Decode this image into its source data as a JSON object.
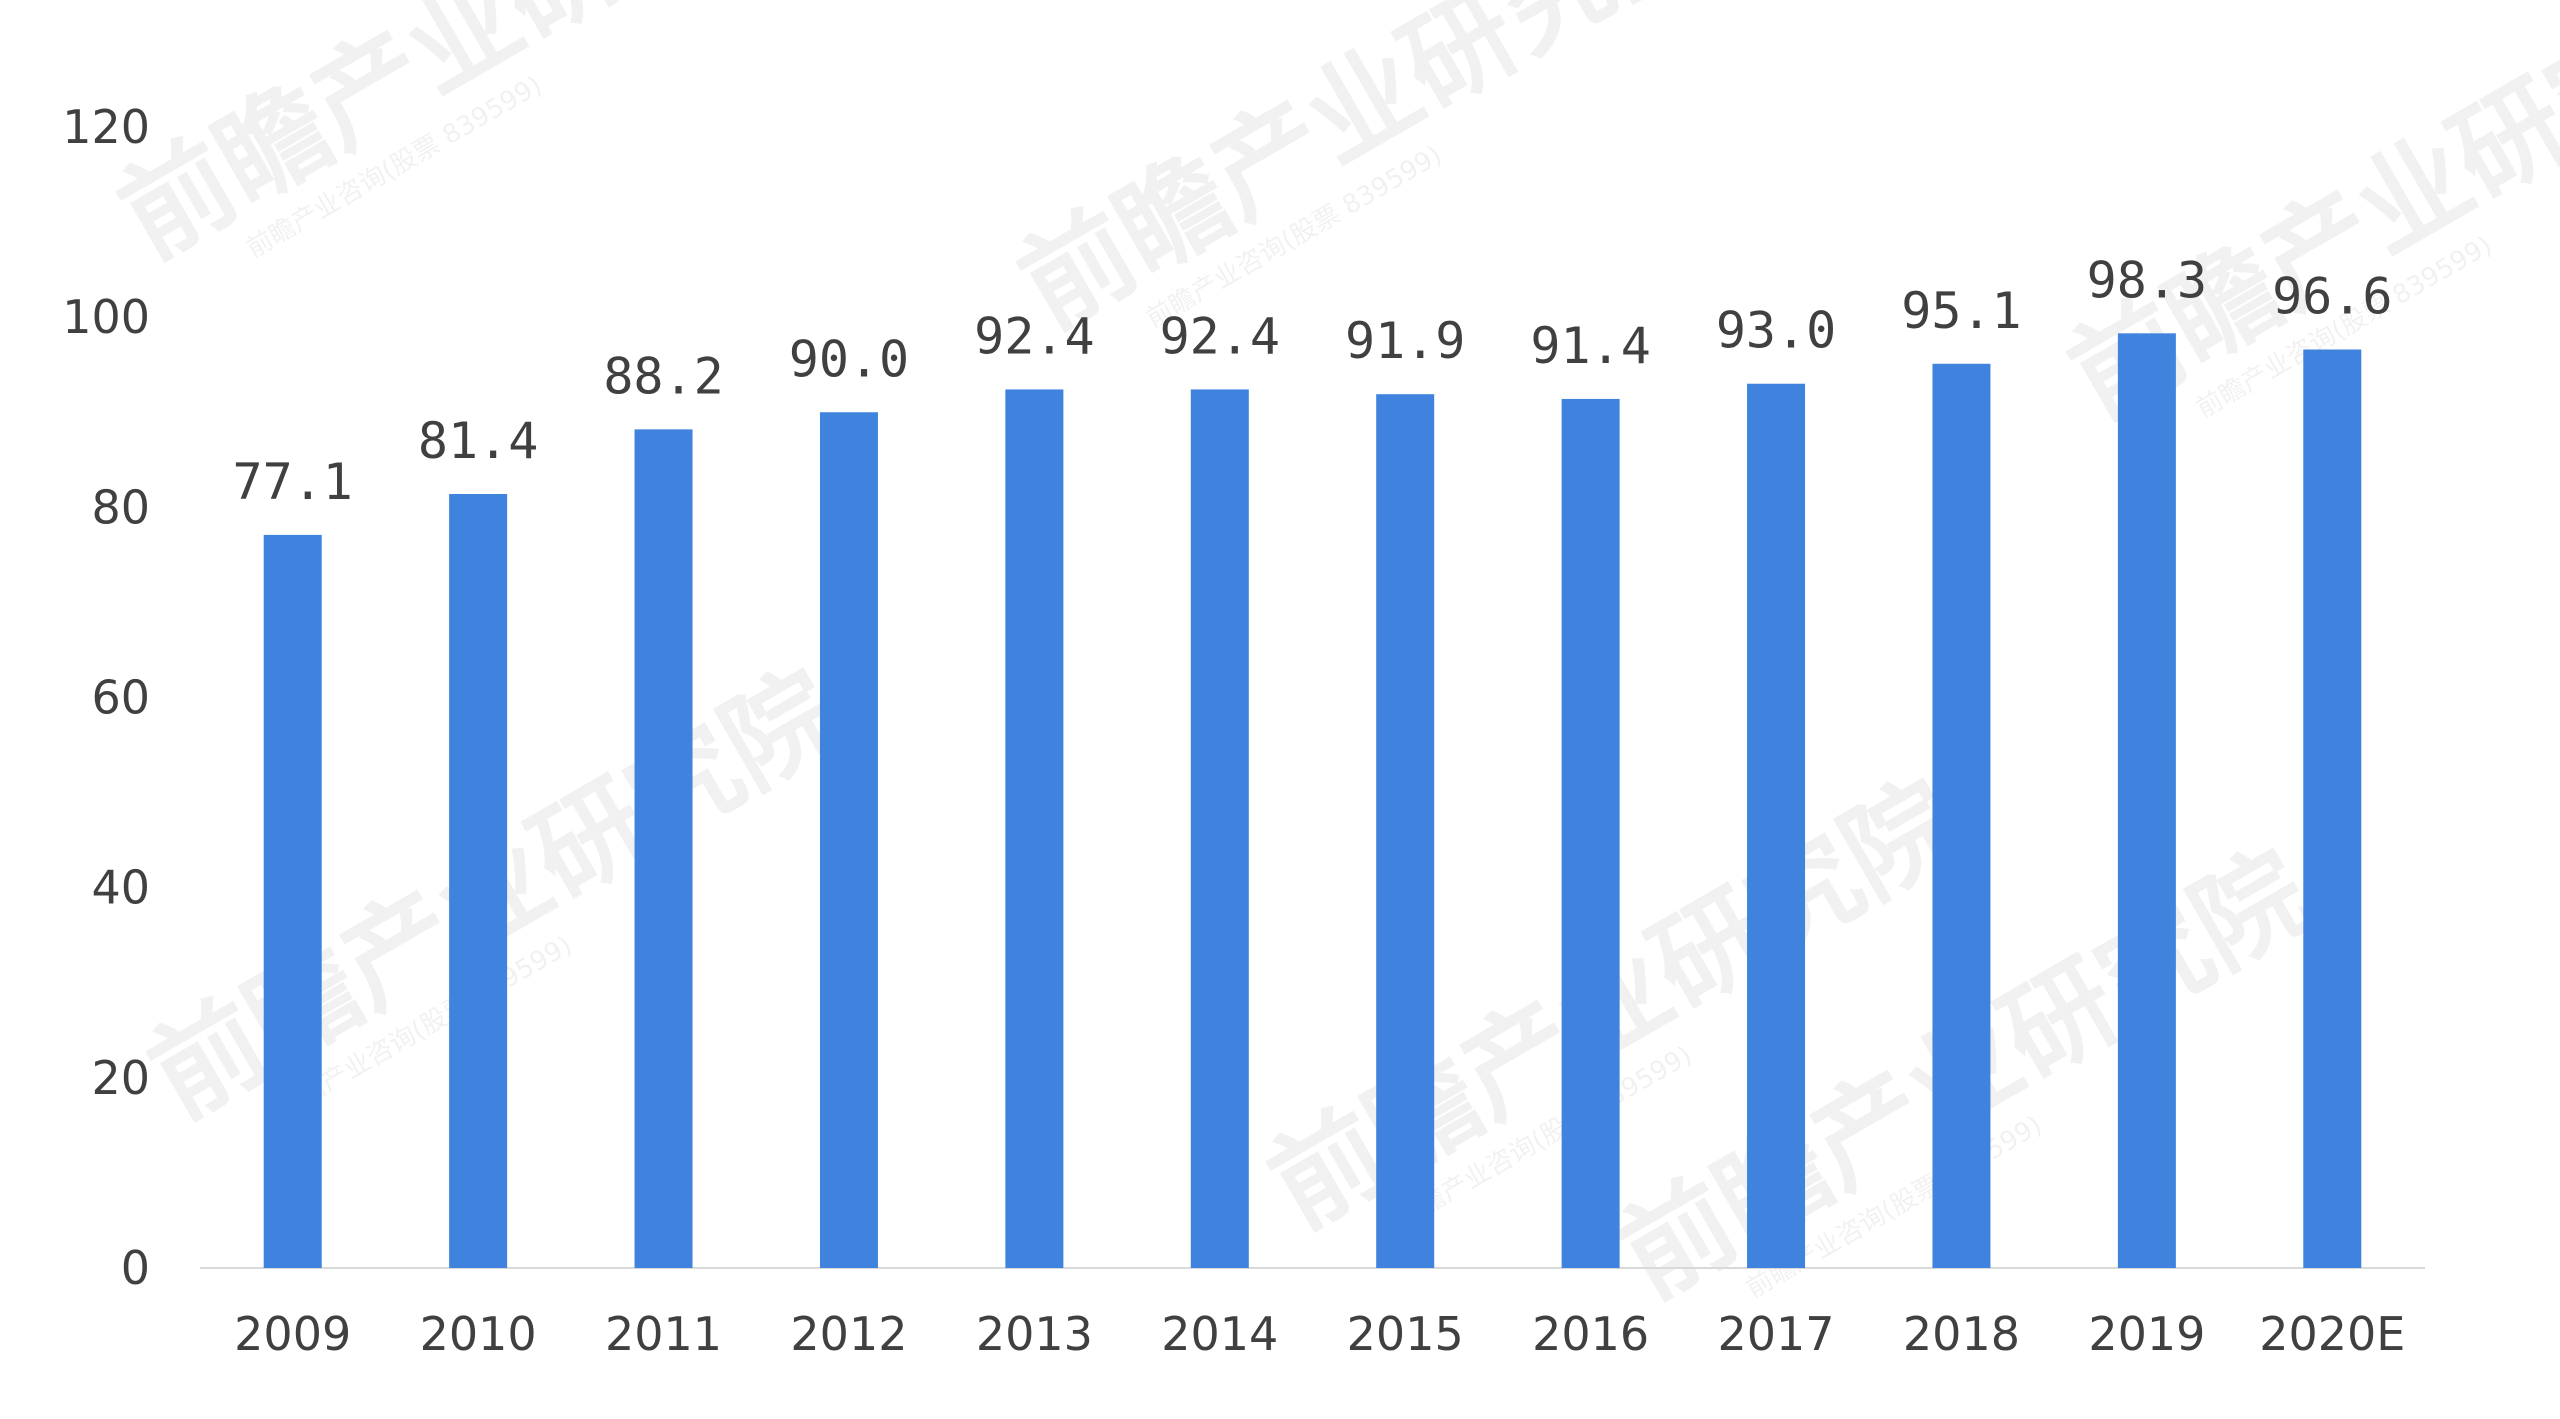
{
  "chart_data": {
    "type": "bar",
    "title": "",
    "xlabel": "",
    "ylabel": "",
    "categories": [
      "2009",
      "2010",
      "2011",
      "2012",
      "2013",
      "2014",
      "2015",
      "2016",
      "2017",
      "2018",
      "2019",
      "2020E"
    ],
    "values": [
      77.1,
      81.4,
      88.2,
      90.0,
      92.4,
      92.4,
      91.9,
      91.4,
      93.0,
      95.1,
      98.3,
      96.6
    ],
    "data_labels": [
      "77.1",
      "81.4",
      "88.2",
      "90.0",
      "92.4",
      "92.4",
      "91.9",
      "91.4",
      "93.0",
      "95.1",
      "98.3",
      "96.6"
    ],
    "ylim": [
      0,
      120
    ],
    "yticks": [
      0,
      20,
      40,
      60,
      80,
      100,
      120
    ],
    "grid": false,
    "legend": "none",
    "bar_color": "#3F83DE",
    "axis_color": "#D9D9D9",
    "text_color": "#404040"
  },
  "watermark": {
    "text": "前瞻产业研究院",
    "subtext": "前瞻产业咨询(股票 839599)"
  }
}
